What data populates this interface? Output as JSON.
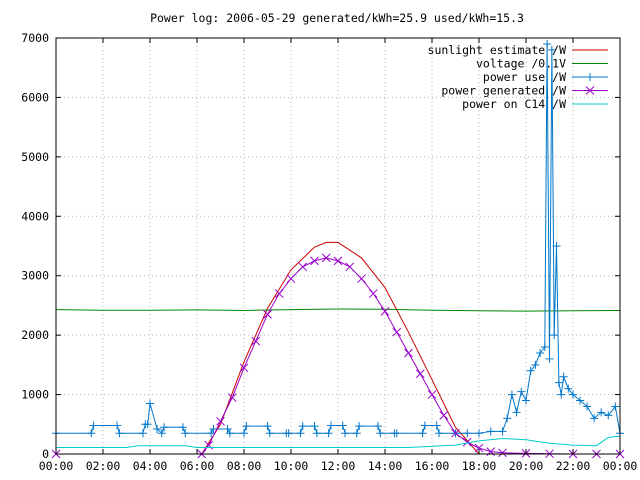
{
  "chart_data": {
    "type": "line",
    "title": "Power log: 2006-05-29 generated/kWh=25.9 used/kWh=15.3",
    "xlabel": "",
    "ylabel": "",
    "xlim": [
      0,
      24
    ],
    "ylim": [
      0,
      7000
    ],
    "x_ticks": [
      "00:00",
      "02:00",
      "04:00",
      "06:00",
      "08:00",
      "10:00",
      "12:00",
      "14:00",
      "16:00",
      "18:00",
      "20:00",
      "22:00",
      "00:00"
    ],
    "y_ticks": [
      "0",
      "1000",
      "2000",
      "3000",
      "4000",
      "5000",
      "6000",
      "7000"
    ],
    "grid": true,
    "legend_position": "top-right",
    "series": [
      {
        "name": "sunlight estimate /W",
        "color": "#cc0000",
        "marker": "none",
        "x": [
          6.2,
          7,
          8,
          9,
          10,
          11,
          11.5,
          12,
          13,
          14,
          15,
          16,
          17,
          18
        ],
        "values": [
          0,
          500,
          1550,
          2450,
          3100,
          3480,
          3560,
          3560,
          3300,
          2800,
          2050,
          1250,
          450,
          0
        ]
      },
      {
        "name": "voltage /0.1V",
        "color": "#008800",
        "marker": "none",
        "x": [
          0,
          2,
          4,
          6,
          8,
          10,
          12,
          14,
          16,
          18,
          20,
          22,
          24
        ],
        "values": [
          2430,
          2420,
          2420,
          2425,
          2415,
          2430,
          2440,
          2435,
          2420,
          2410,
          2405,
          2410,
          2415
        ]
      },
      {
        "name": "power use /W",
        "color": "#0077cc",
        "marker": "plus",
        "x": [
          0,
          1.5,
          1.6,
          2.6,
          2.7,
          3.7,
          3.8,
          3.9,
          4.0,
          4.3,
          4.5,
          4.6,
          5.4,
          5.5,
          6.6,
          6.7,
          7.3,
          7.4,
          8.0,
          8.1,
          9.0,
          9.1,
          9.8,
          9.9,
          10.4,
          10.5,
          11.0,
          11.1,
          11.6,
          11.7,
          12.2,
          12.3,
          12.8,
          12.9,
          13.7,
          13.8,
          14.4,
          14.5,
          15.6,
          15.7,
          16.2,
          16.3,
          17.0,
          17.5,
          18.0,
          18.5,
          19.0,
          19.2,
          19.4,
          19.6,
          19.8,
          20.0,
          20.2,
          20.4,
          20.6,
          20.8,
          20.9,
          21.0,
          21.1,
          21.2,
          21.3,
          21.4,
          21.5,
          21.6,
          21.8,
          22.0,
          22.3,
          22.6,
          22.9,
          23.2,
          23.5,
          23.8,
          24.0
        ],
        "values": [
          350,
          350,
          480,
          480,
          350,
          350,
          500,
          500,
          850,
          420,
          350,
          450,
          450,
          350,
          350,
          420,
          420,
          350,
          350,
          470,
          470,
          350,
          350,
          350,
          350,
          470,
          470,
          350,
          350,
          480,
          480,
          350,
          350,
          470,
          470,
          350,
          350,
          350,
          350,
          480,
          480,
          350,
          350,
          350,
          350,
          380,
          380,
          600,
          1000,
          700,
          1050,
          900,
          1400,
          1500,
          1700,
          1800,
          6900,
          1600,
          6800,
          2000,
          3500,
          1200,
          1000,
          1300,
          1100,
          1000,
          900,
          800,
          600,
          700,
          650,
          800,
          350
        ]
      },
      {
        "name": "power generated /W",
        "color": "#9900cc",
        "marker": "cross",
        "x": [
          0,
          6.2,
          6.5,
          7,
          7.5,
          8,
          8.5,
          9,
          9.5,
          10,
          10.5,
          11,
          11.5,
          12,
          12.5,
          13,
          13.5,
          14,
          14.5,
          15,
          15.5,
          16,
          16.5,
          17,
          17.5,
          18,
          18.5,
          19,
          20,
          21,
          22,
          23,
          24
        ],
        "values": [
          0,
          0,
          150,
          550,
          950,
          1450,
          1900,
          2350,
          2700,
          2950,
          3150,
          3250,
          3300,
          3250,
          3150,
          2950,
          2700,
          2400,
          2050,
          1700,
          1350,
          1000,
          650,
          350,
          200,
          100,
          40,
          20,
          10,
          5,
          0,
          0,
          0
        ]
      },
      {
        "name": "power on C14 /W",
        "color": "#00cccc",
        "marker": "none",
        "x": [
          0,
          3,
          3.5,
          5.5,
          6,
          9,
          12,
          15,
          17,
          18,
          19,
          20,
          21,
          22,
          23,
          23.5,
          24
        ],
        "values": [
          110,
          110,
          140,
          140,
          110,
          110,
          110,
          110,
          150,
          220,
          260,
          240,
          180,
          150,
          140,
          280,
          300
        ]
      }
    ]
  }
}
